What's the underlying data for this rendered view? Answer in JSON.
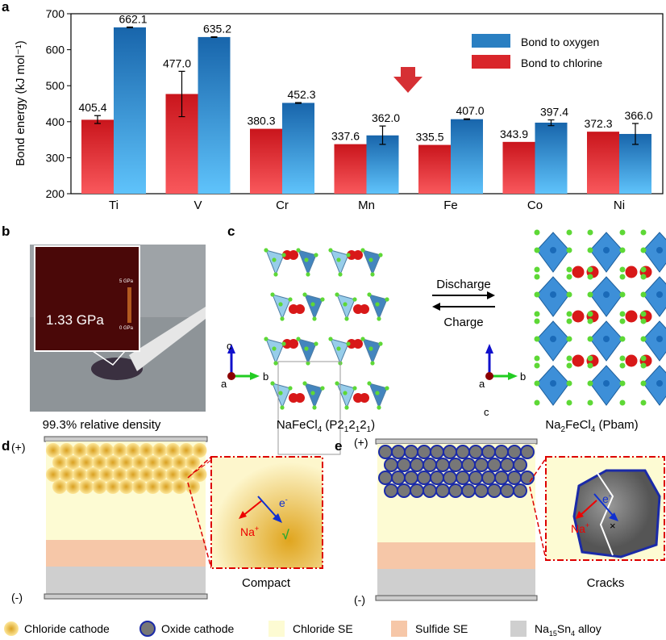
{
  "panel_labels": {
    "a": "a",
    "b": "b",
    "c": "c",
    "d": "d",
    "e": "e"
  },
  "chart_data": {
    "type": "bar",
    "categories": [
      "Ti",
      "V",
      "Cr",
      "Mn",
      "Fe",
      "Co",
      "Ni"
    ],
    "ylabel": "Bond energy (kJ mol⁻¹)",
    "ylim": [
      200,
      700
    ],
    "yticks": [
      "200",
      "300",
      "400",
      "500",
      "600",
      "700"
    ],
    "legend_position": "top-right",
    "series": [
      {
        "name": "Bond to chlorine",
        "color": "#d9262b",
        "values": [
          405.4,
          477.0,
          380.3,
          337.6,
          335.5,
          343.9,
          372.3
        ],
        "labels": [
          "405.4",
          "477.0",
          "380.3",
          "337.6",
          "335.5",
          "343.9",
          "372.3"
        ],
        "error": [
          [
            395,
            417
          ],
          [
            414,
            540
          ],
          null,
          null,
          null,
          null,
          null
        ]
      },
      {
        "name": "Bond to oxygen",
        "color": "#2a7fc2",
        "values": [
          662.1,
          635.2,
          452.3,
          362.0,
          407.0,
          397.4,
          366.0
        ],
        "labels": [
          "662.1",
          "635.2",
          "452.3",
          "362.0",
          "407.0",
          "397.4",
          "366.0"
        ],
        "error": [
          [
            661,
            663
          ],
          [
            634,
            636
          ],
          [
            451,
            453
          ],
          [
            337,
            388
          ],
          [
            406,
            408
          ],
          [
            389,
            405
          ],
          [
            337,
            395
          ]
        ]
      }
    ],
    "highlight": "Fe"
  },
  "panel_b": {
    "inset_value": "1.33 GPa",
    "scale_max": "5 GPa",
    "scale_min": "0 GPa",
    "caption": "99.3% relative density"
  },
  "panel_c": {
    "arrow_top": "Discharge",
    "arrow_bottom": "Charge",
    "axes": {
      "c": "c",
      "a": "a",
      "b": "b"
    },
    "left_formula": "NaFeCl",
    "left_sub": "4",
    "left_group": " (P2",
    "left_s1": "1",
    "left_two": "2",
    "left_close": ")",
    "right_formula": "Na",
    "right_sub1": "2",
    "right_mid": "FeCl",
    "right_sub2": "4",
    "right_group": " (Pbam)"
  },
  "panel_d": {
    "plus": "(+)",
    "minus": "(-)",
    "ion": "Na",
    "ion_sup": "+",
    "electron": "e",
    "electron_sup": "-",
    "check": "√",
    "caption": "Compact"
  },
  "panel_e": {
    "plus": "(+)",
    "minus": "(-)",
    "ion": "Na",
    "ion_sup": "+",
    "electron": "e",
    "electron_sup": "-",
    "cross": "×",
    "caption": "Cracks"
  },
  "legend_bottom": [
    {
      "label": "Chloride cathode",
      "color": "#f0c030"
    },
    {
      "label": "Oxide cathode",
      "color": "#777777"
    },
    {
      "label": "Chloride SE",
      "color": "#fdfbd3"
    },
    {
      "label": "Sulfide SE",
      "color": "#f6c7a8"
    },
    {
      "label": "Na15Sn4 alloy",
      "color": "#cfcfcf"
    }
  ],
  "legend_alloy": {
    "a": "Na",
    "b": "15",
    "c": "Sn",
    "d": "4",
    "e": " alloy"
  }
}
